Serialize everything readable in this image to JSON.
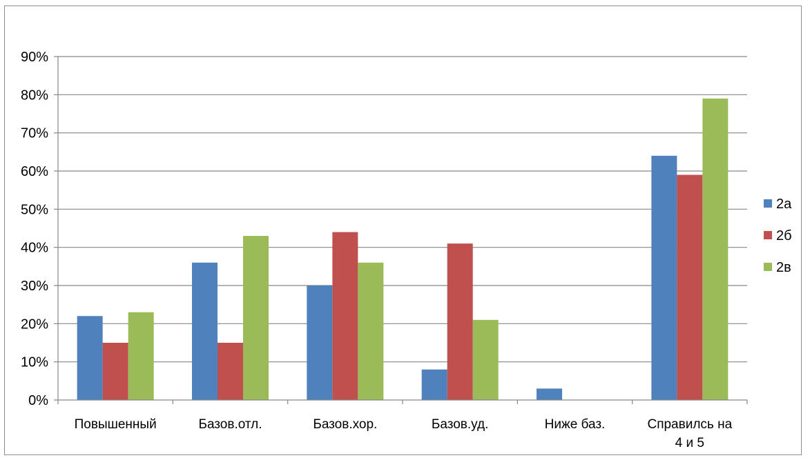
{
  "chart_data": {
    "type": "bar",
    "categories": [
      [
        "Повышенный"
      ],
      [
        "Базов.отл."
      ],
      [
        "Базов.хор."
      ],
      [
        "Базов.уд."
      ],
      [
        "Ниже баз."
      ],
      [
        "Справилсь на",
        "4 и 5"
      ]
    ],
    "series": [
      {
        "name": "2а",
        "color": "#4F81BD",
        "values": [
          22,
          36,
          30,
          8,
          3,
          64
        ]
      },
      {
        "name": "2б",
        "color": "#C0504D",
        "values": [
          15,
          15,
          44,
          41,
          0,
          59
        ]
      },
      {
        "name": "2в",
        "color": "#9BBB59",
        "values": [
          23,
          43,
          36,
          21,
          0,
          79
        ]
      }
    ],
    "ylim": [
      0,
      90
    ],
    "yticks": [
      "0%",
      "10%",
      "20%",
      "30%",
      "40%",
      "50%",
      "60%",
      "70%",
      "80%",
      "90%"
    ],
    "grid": true,
    "legend_position": "right"
  }
}
